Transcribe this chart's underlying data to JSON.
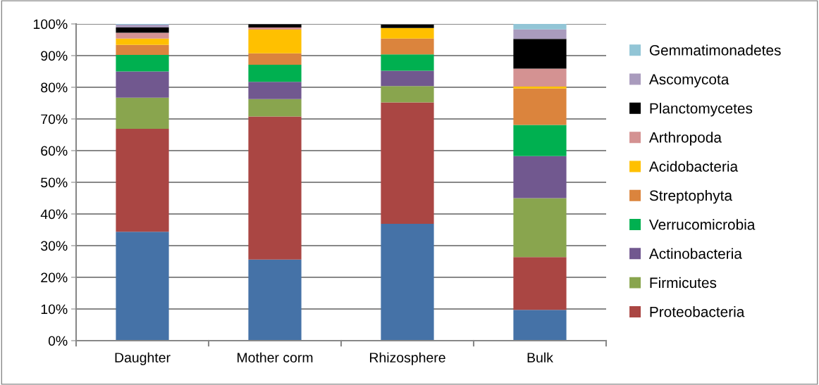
{
  "chart_data": {
    "type": "bar",
    "stacked": true,
    "categories": [
      "Daughter",
      "Mother corm",
      "Rhizosphere",
      "Bulk"
    ],
    "series": [
      {
        "color": "#4572a7",
        "values": [
          34.4,
          25.6,
          36.9,
          9.7
        ]
      },
      {
        "name": "Proteobacteria",
        "color": "#aa4643",
        "values": [
          32.5,
          45.2,
          38.3,
          16.7
        ]
      },
      {
        "name": "Firmicutes",
        "color": "#89a54e",
        "values": [
          9.8,
          5.5,
          5.2,
          18.6
        ]
      },
      {
        "name": "Actinobacteria",
        "color": "#71588f",
        "values": [
          8.3,
          5.4,
          4.8,
          13.3
        ]
      },
      {
        "name": "Verrucomicrobia",
        "color": "#00b050",
        "values": [
          5.2,
          5.4,
          5.2,
          9.8
        ]
      },
      {
        "name": "Streptophyta",
        "color": "#db843d",
        "values": [
          3.2,
          3.6,
          5.0,
          11.5
        ]
      },
      {
        "name": "Acidobacteria",
        "color": "#ffc000",
        "values": [
          2.0,
          7.5,
          3.3,
          0.6
        ]
      },
      {
        "name": "Arthropoda",
        "color": "#d49292",
        "values": [
          1.8,
          0.7,
          null,
          5.7
        ]
      },
      {
        "name": "Planctomycetes",
        "color": "#000000",
        "values": [
          1.7,
          1.0,
          1.1,
          9.4
        ]
      },
      {
        "name": "Ascomycota",
        "color": "#a99bbd",
        "values": [
          0.9,
          null,
          null,
          3.0
        ]
      },
      {
        "name": "Gemmatimonadetes",
        "color": "#92c5d6",
        "values": [
          0.2,
          0.0,
          0.0,
          1.7
        ]
      }
    ],
    "ylim": [
      0,
      100
    ],
    "yticks": [
      {
        "value": 0,
        "label": "0%"
      },
      {
        "value": 10,
        "label": "10%"
      },
      {
        "value": 20,
        "label": "20%"
      },
      {
        "value": 30,
        "label": "30%"
      },
      {
        "value": 40,
        "label": "40%"
      },
      {
        "value": 50,
        "label": "50%"
      },
      {
        "value": 60,
        "label": "60%"
      },
      {
        "value": 70,
        "label": "70%"
      },
      {
        "value": 80,
        "label": "80%"
      },
      {
        "value": 90,
        "label": "90%"
      },
      {
        "value": 100,
        "label": "100%"
      }
    ],
    "grid": "y",
    "legend": "right"
  }
}
